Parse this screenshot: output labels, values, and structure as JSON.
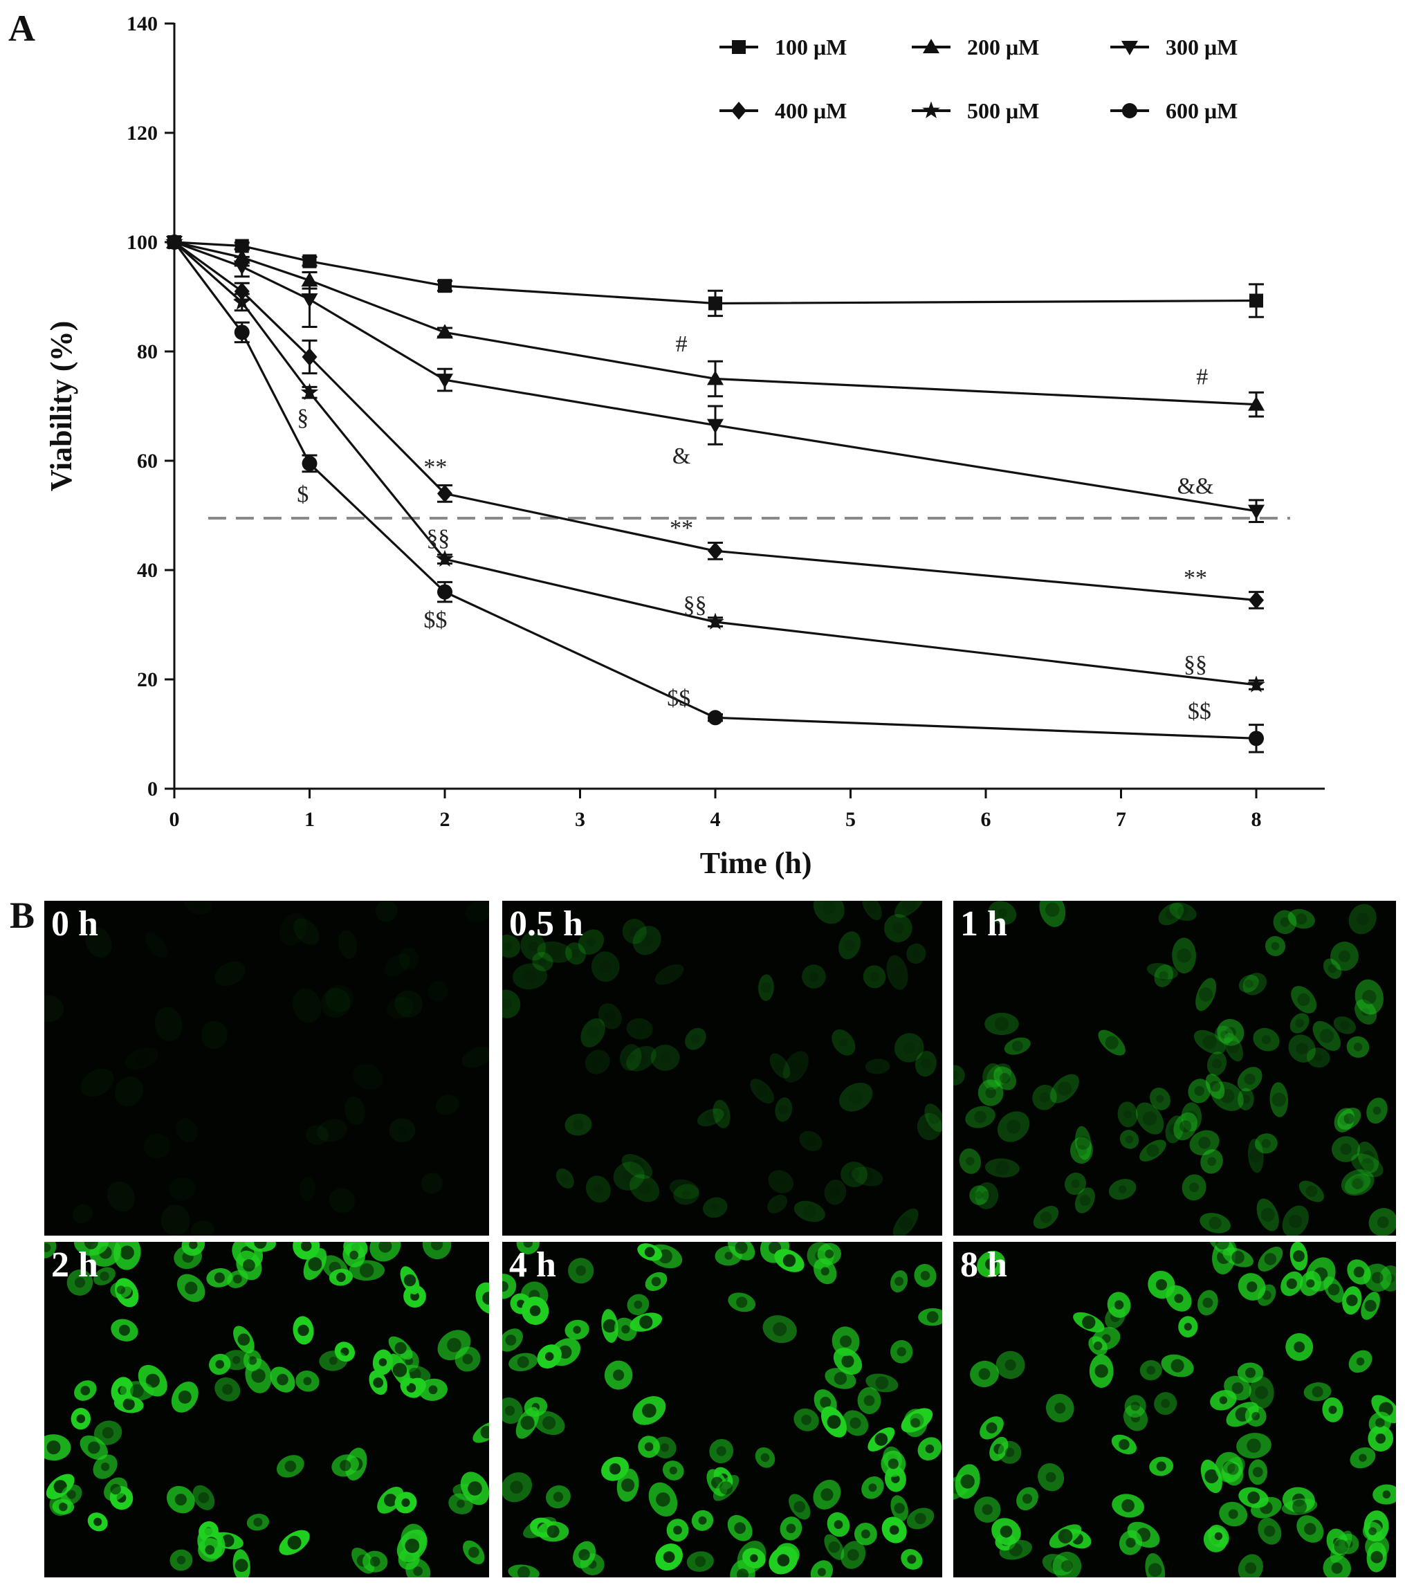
{
  "panel_labels": {
    "a": "A",
    "b": "B"
  },
  "chart_data": {
    "type": "line",
    "xlabel": "Time (h)",
    "ylabel": "Viability (%)",
    "xlim": [
      0,
      8.5
    ],
    "ylim": [
      0,
      140
    ],
    "x_ticks": [
      0,
      1,
      2,
      3,
      4,
      5,
      6,
      7,
      8
    ],
    "y_ticks": [
      0,
      20,
      40,
      60,
      80,
      100,
      120,
      140
    ],
    "grid": false,
    "legend_position": "top-right",
    "reference_line": {
      "y": 49.5,
      "style": "dashed",
      "color": "#888888"
    },
    "series": [
      {
        "name": "100 μM",
        "marker": "square",
        "x": [
          0,
          0.5,
          1,
          2,
          4,
          8
        ],
        "y": [
          100,
          99.3,
          96.5,
          92,
          88.8,
          89.3
        ],
        "err": [
          0,
          0.6,
          0.8,
          0.9,
          2.3,
          3.0
        ]
      },
      {
        "name": "200 μM",
        "marker": "triangle-up",
        "x": [
          0,
          0.5,
          1,
          2,
          4,
          8
        ],
        "y": [
          100,
          97.2,
          93,
          83.5,
          75,
          70.3
        ],
        "err": [
          0,
          1.5,
          1.5,
          0.8,
          3.2,
          2.2
        ]
      },
      {
        "name": "300 μM",
        "marker": "triangle-down",
        "x": [
          0,
          0.5,
          1,
          2,
          4,
          8
        ],
        "y": [
          100,
          95.5,
          89.5,
          74.8,
          66.5,
          50.8
        ],
        "err": [
          0,
          1.8,
          5.0,
          2.0,
          3.5,
          2.0
        ]
      },
      {
        "name": "400 μM",
        "marker": "diamond",
        "x": [
          0,
          0.5,
          1,
          2,
          4,
          8
        ],
        "y": [
          100,
          91,
          79,
          54,
          43.5,
          34.5
        ],
        "err": [
          0,
          1.5,
          3.0,
          1.5,
          1.5,
          1.5
        ]
      },
      {
        "name": "500 μM",
        "marker": "star",
        "x": [
          0,
          0.5,
          1,
          2,
          4,
          8
        ],
        "y": [
          100,
          89,
          72.5,
          42,
          30.5,
          19
        ],
        "err": [
          0,
          1.5,
          1.0,
          0.8,
          0.8,
          0.8
        ]
      },
      {
        "name": "600 μM",
        "marker": "circle",
        "x": [
          0,
          0.5,
          1,
          2,
          4,
          8
        ],
        "y": [
          100,
          83.5,
          59.5,
          36,
          13,
          9.2
        ],
        "err": [
          0,
          1.8,
          1.5,
          1.8,
          0.6,
          2.5
        ]
      }
    ],
    "annotations": [
      {
        "text": "#",
        "x": 3.75,
        "y": 80
      },
      {
        "text": "#",
        "x": 7.6,
        "y": 74
      },
      {
        "text": "&",
        "x": 3.75,
        "y": 59.5
      },
      {
        "text": "&&",
        "x": 7.55,
        "y": 54
      },
      {
        "text": "**",
        "x": 1.93,
        "y": 57.5
      },
      {
        "text": "**",
        "x": 3.75,
        "y": 46.3
      },
      {
        "text": "**",
        "x": 7.55,
        "y": 37.2
      },
      {
        "text": "§",
        "x": 0.95,
        "y": 66.5
      },
      {
        "text": "§§",
        "x": 1.95,
        "y": 44.5
      },
      {
        "text": "§§",
        "x": 3.85,
        "y": 32.3
      },
      {
        "text": "§§",
        "x": 7.55,
        "y": 21.4
      },
      {
        "text": "$",
        "x": 0.95,
        "y": 52.5
      },
      {
        "text": "$$",
        "x": 1.93,
        "y": 29.5
      },
      {
        "text": "$$",
        "x": 3.73,
        "y": 15.2
      },
      {
        "text": "$$",
        "x": 7.58,
        "y": 12.8
      }
    ]
  },
  "microscopy": {
    "panels": [
      {
        "label": "0 h",
        "intensity": 0.06,
        "density": 40
      },
      {
        "label": "0.5 h",
        "intensity": 0.22,
        "density": 60
      },
      {
        "label": "1 h",
        "intensity": 0.45,
        "density": 85
      },
      {
        "label": "2 h",
        "intensity": 0.95,
        "density": 95
      },
      {
        "label": "4 h",
        "intensity": 0.95,
        "density": 95
      },
      {
        "label": "8 h",
        "intensity": 0.85,
        "density": 95
      }
    ],
    "fluorescence_color": "#20d020"
  }
}
